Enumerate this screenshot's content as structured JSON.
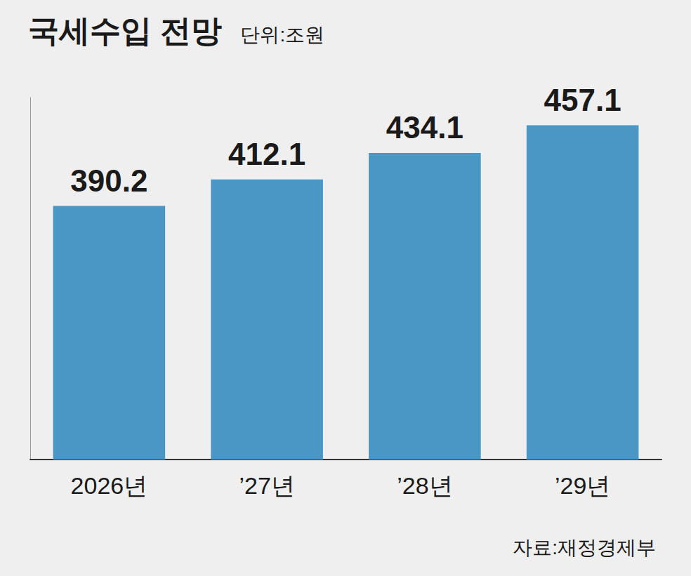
{
  "chart_data": {
    "type": "bar",
    "title": "국세수입 전망",
    "subtitle": "단위:조원",
    "source": "자료:재정경제부",
    "categories": [
      "2026년",
      "’27년",
      "’28년",
      "’29년"
    ],
    "values": [
      390.2,
      412.1,
      434.1,
      457.1
    ],
    "color": "#4a96c4",
    "ylim": [
      180,
      480
    ],
    "data_labels": true,
    "tick_labels": "x",
    "grid": false
  }
}
